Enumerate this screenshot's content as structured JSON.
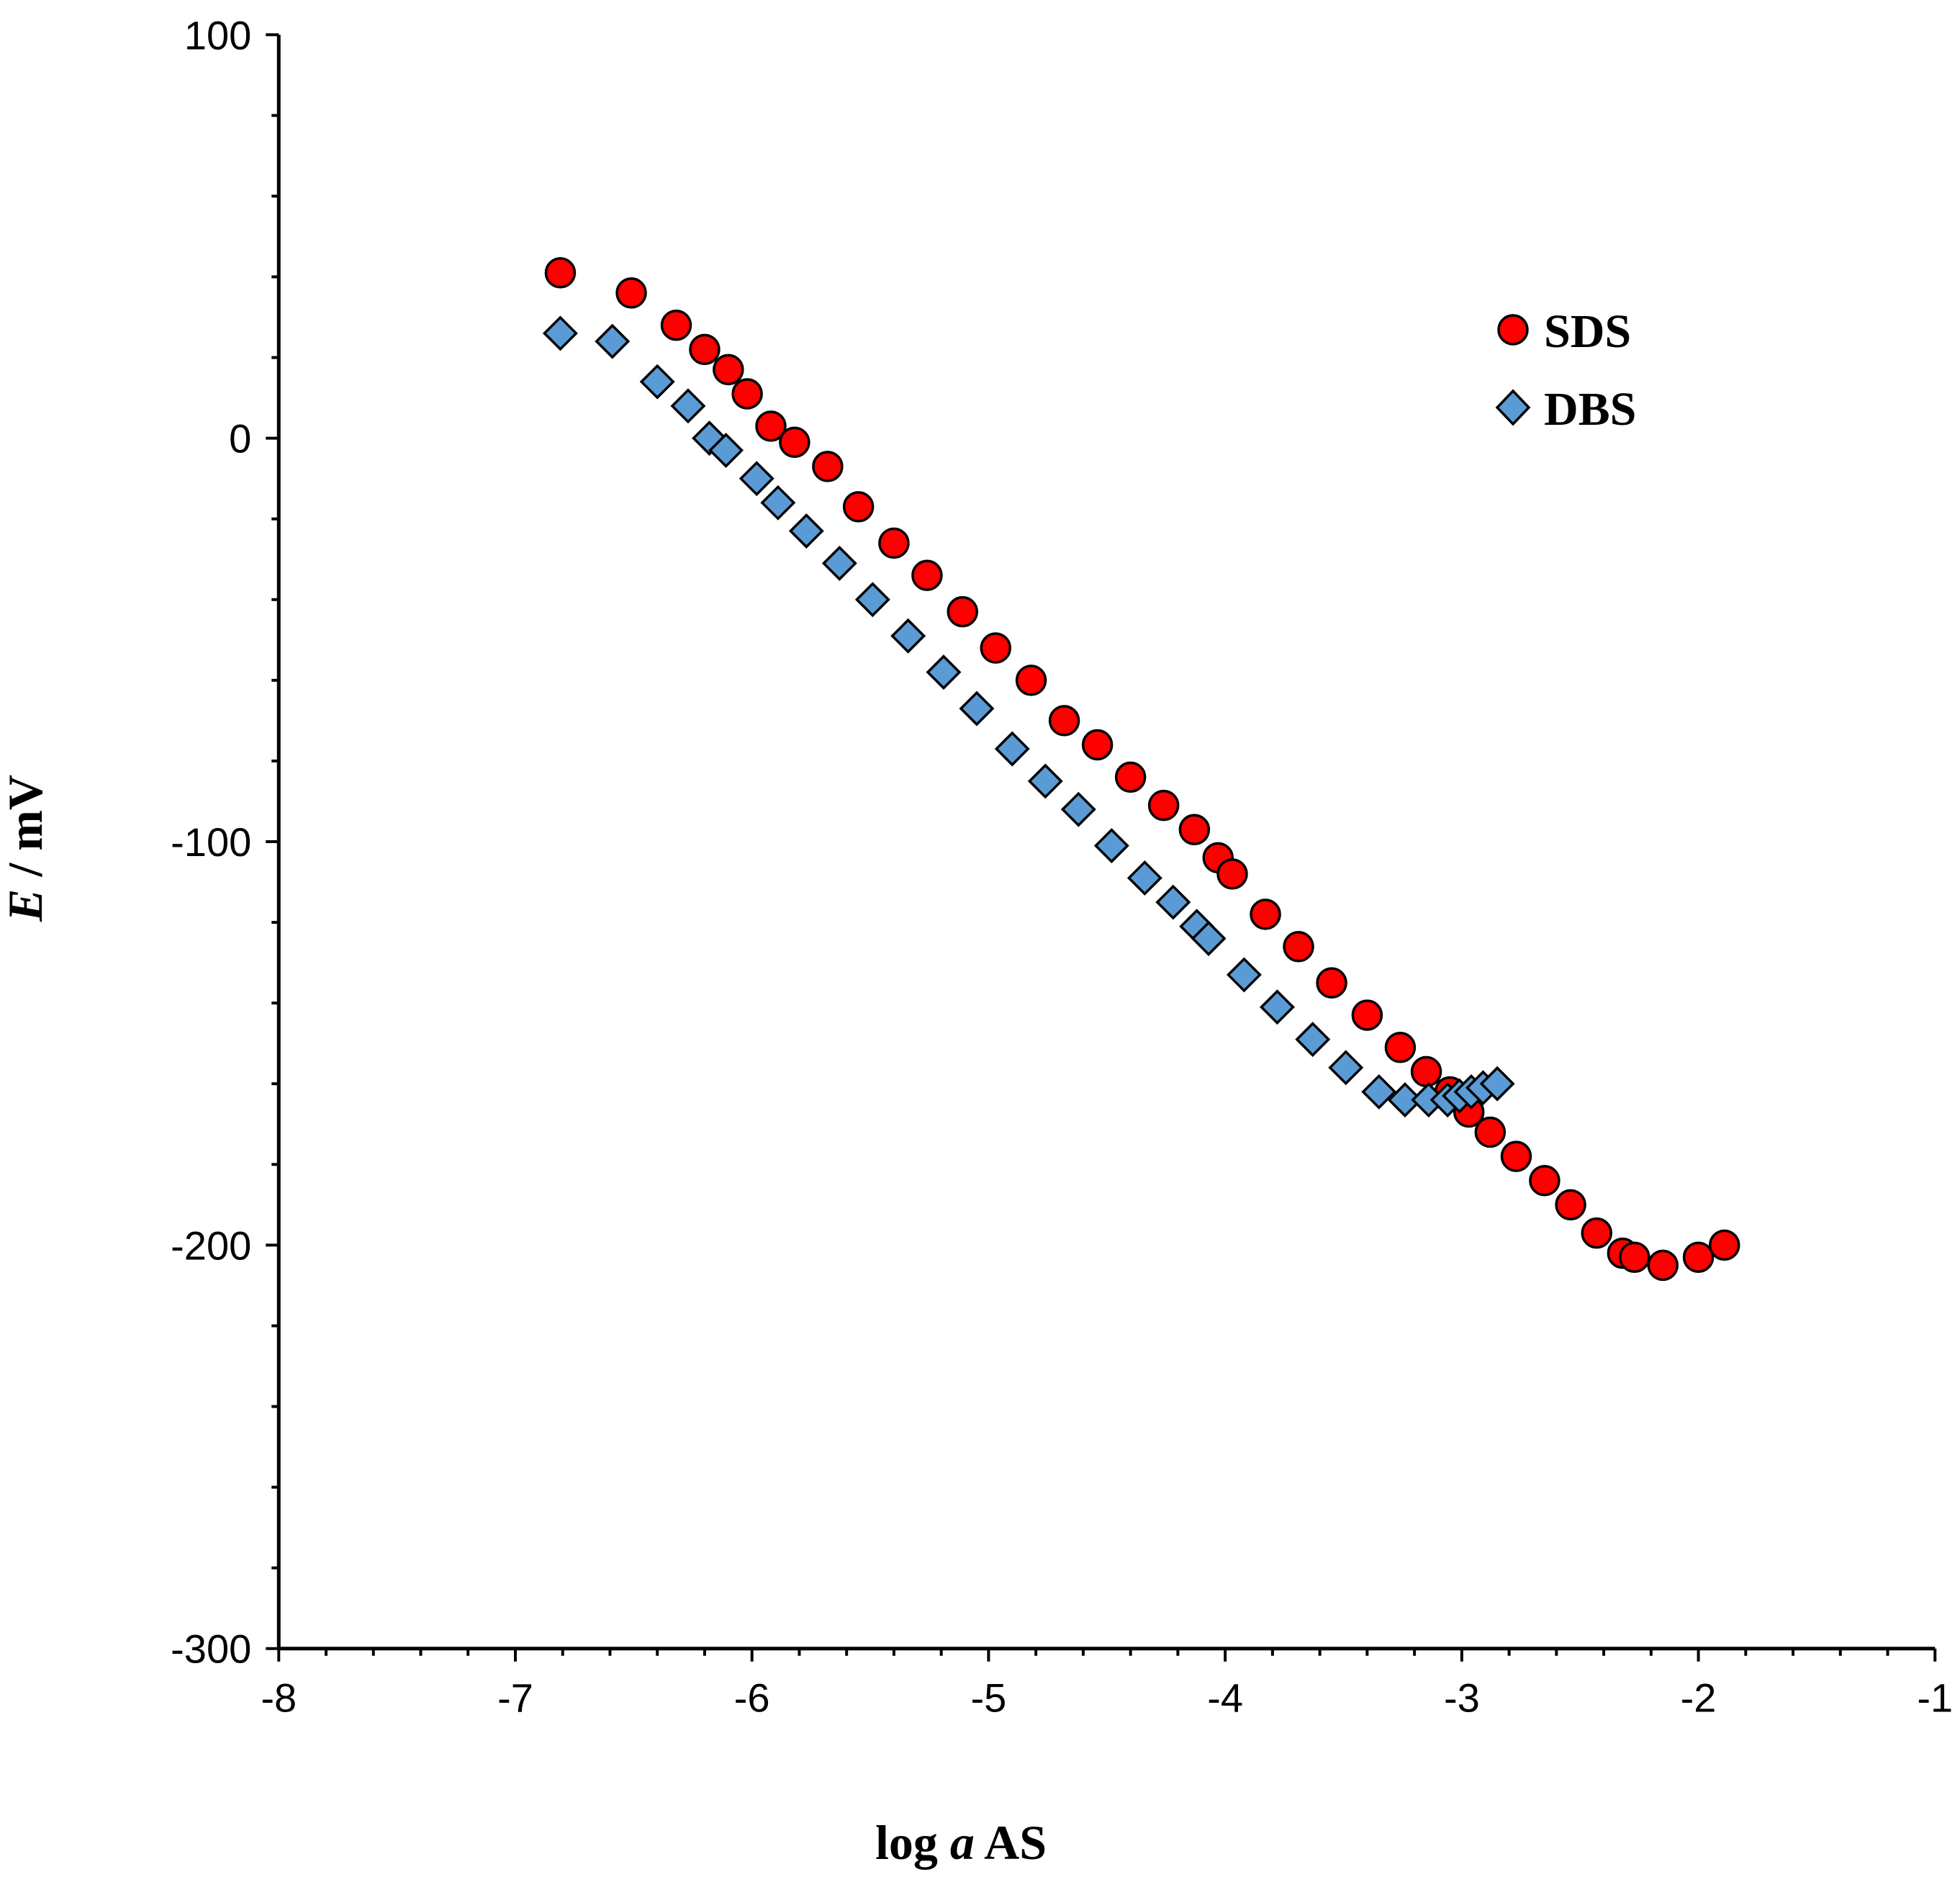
{
  "chart_data": {
    "type": "scatter",
    "title": "",
    "xlabel": {
      "pre": "log ",
      "ital": "a",
      "post": " AS"
    },
    "ylabel": {
      "ital": "E",
      "post": " / mV"
    },
    "xlim": [
      -8,
      -1
    ],
    "ylim": [
      -300,
      100
    ],
    "x_ticks": [
      -8,
      -7,
      -6,
      -5,
      -4,
      -3,
      -2,
      -1
    ],
    "x_tick_labels": [
      "-8",
      "-7",
      "-6",
      "-5",
      "-4",
      "-3",
      "-2",
      "-1"
    ],
    "y_ticks": [
      -300,
      -200,
      -100,
      0,
      100
    ],
    "y_tick_labels": [
      "-300",
      "-200",
      "-100",
      "0",
      "100"
    ],
    "x_minor_step": 0.2,
    "y_minor_step": 20,
    "grid": false,
    "legend_position": "top-right",
    "series": [
      {
        "name": "SDS",
        "marker": "circle",
        "color": "#ff0000",
        "x": [
          -6.81,
          -6.51,
          -6.32,
          -6.2,
          -6.1,
          -6.02,
          -5.92,
          -5.82,
          -5.68,
          -5.55,
          -5.4,
          -5.26,
          -5.11,
          -4.97,
          -4.82,
          -4.68,
          -4.54,
          -4.4,
          -4.26,
          -4.13,
          -4.03,
          -3.97,
          -3.83,
          -3.69,
          -3.55,
          -3.4,
          -3.26,
          -3.15,
          -3.05,
          -2.97,
          -2.88,
          -2.77,
          -2.65,
          -2.54,
          -2.43,
          -2.32,
          -2.27,
          -2.15,
          -2.0,
          -1.89
        ],
        "y": [
          41,
          36,
          28,
          22,
          17,
          11,
          3,
          -1,
          -7,
          -17,
          -26,
          -34,
          -43,
          -52,
          -60,
          -70,
          -76,
          -84,
          -91,
          -97,
          -104,
          -108,
          -118,
          -126,
          -135,
          -143,
          -151,
          -157,
          -162,
          -167,
          -172,
          -178,
          -184,
          -190,
          -197,
          -202,
          -203,
          -205,
          -203,
          -200
        ]
      },
      {
        "name": "DBS",
        "marker": "diamond",
        "color": "#5b9bd5",
        "x": [
          -6.81,
          -6.59,
          -6.4,
          -6.27,
          -6.18,
          -6.11,
          -5.98,
          -5.89,
          -5.77,
          -5.63,
          -5.49,
          -5.34,
          -5.19,
          -5.05,
          -4.9,
          -4.76,
          -4.62,
          -4.48,
          -4.34,
          -4.22,
          -4.12,
          -4.07,
          -3.92,
          -3.78,
          -3.63,
          -3.49,
          -3.35,
          -3.24,
          -3.14,
          -3.06,
          -3.01,
          -2.96,
          -2.91,
          -2.85
        ],
        "y": [
          26,
          24,
          14,
          8,
          0,
          -3,
          -10,
          -16,
          -23,
          -31,
          -40,
          -49,
          -58,
          -67,
          -77,
          -85,
          -92,
          -101,
          -109,
          -115,
          -121,
          -124,
          -133,
          -141,
          -149,
          -156,
          -162,
          -164,
          -164,
          -164,
          -163,
          -162,
          -161,
          -160
        ]
      }
    ]
  }
}
